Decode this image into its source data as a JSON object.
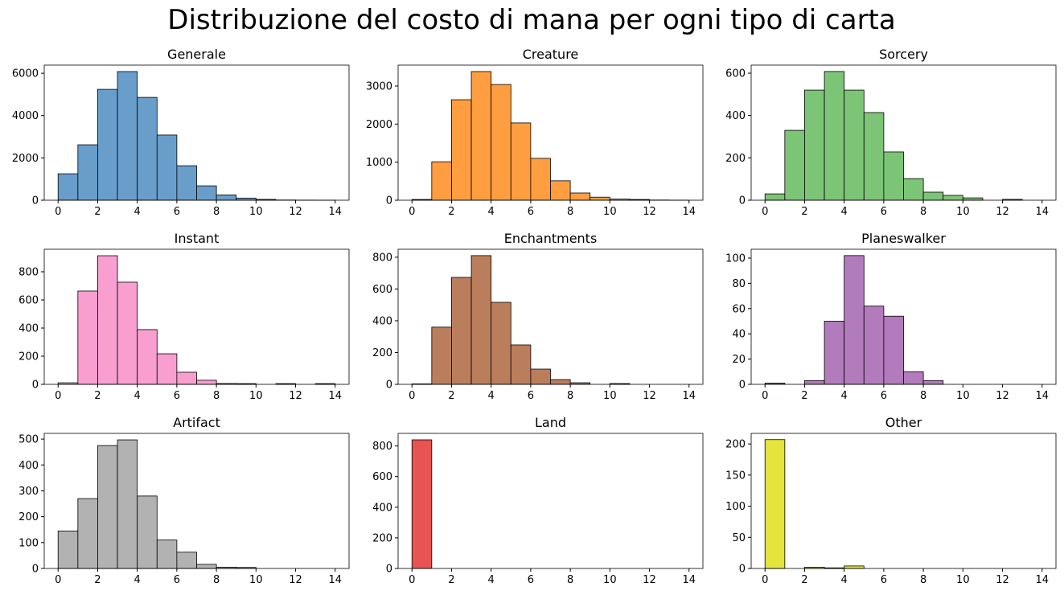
{
  "title": "Distribuzione del costo di mana per ogni tipo di carta",
  "chart_data": [
    {
      "type": "histogram",
      "title": "Generale",
      "color": "#699ecb",
      "bins": [
        0,
        1,
        2,
        3,
        4,
        5,
        6,
        7,
        8,
        9,
        10,
        11,
        12,
        13,
        14
      ],
      "values": [
        1250,
        2620,
        5240,
        6080,
        4860,
        3080,
        1630,
        680,
        250,
        100,
        40,
        10,
        5,
        2
      ],
      "xlim": [
        -0.7,
        14.7
      ],
      "xticks": [
        0,
        2,
        4,
        6,
        8,
        10,
        12,
        14
      ],
      "ylim": [
        0,
        6384
      ],
      "yticks": [
        0,
        2000,
        4000,
        6000
      ]
    },
    {
      "type": "histogram",
      "title": "Creature",
      "color": "#ff9e40",
      "bins": [
        0,
        1,
        2,
        3,
        4,
        5,
        6,
        7,
        8,
        9,
        10,
        11,
        12,
        13,
        14
      ],
      "values": [
        20,
        1010,
        2640,
        3380,
        3040,
        2030,
        1100,
        510,
        190,
        80,
        30,
        20,
        5,
        2
      ],
      "xlim": [
        -0.7,
        14.7
      ],
      "xticks": [
        0,
        2,
        4,
        6,
        8,
        10,
        12,
        14
      ],
      "ylim": [
        0,
        3549
      ],
      "yticks": [
        0,
        1000,
        2000,
        3000
      ]
    },
    {
      "type": "histogram",
      "title": "Sorcery",
      "color": "#7cc576",
      "bins": [
        0,
        1,
        2,
        3,
        4,
        5,
        6,
        7,
        8,
        9,
        10,
        11,
        12,
        13,
        14
      ],
      "values": [
        30,
        330,
        520,
        608,
        520,
        414,
        228,
        102,
        38,
        23,
        11,
        0,
        4,
        0
      ],
      "xlim": [
        -0.7,
        14.7
      ],
      "xticks": [
        0,
        2,
        4,
        6,
        8,
        10,
        12,
        14
      ],
      "ylim": [
        0,
        638
      ],
      "yticks": [
        0,
        200,
        400,
        600
      ]
    },
    {
      "type": "histogram",
      "title": "Instant",
      "color": "#f89fd0",
      "bins": [
        0,
        1,
        2,
        3,
        4,
        5,
        6,
        7,
        8,
        9,
        10,
        11,
        12,
        13,
        14
      ],
      "values": [
        11,
        663,
        914,
        726,
        389,
        217,
        86,
        29,
        6,
        5,
        0,
        5,
        0,
        5
      ],
      "xlim": [
        -0.7,
        14.7
      ],
      "xticks": [
        0,
        2,
        4,
        6,
        8,
        10,
        12,
        14
      ],
      "ylim": [
        0,
        960
      ],
      "yticks": [
        0,
        200,
        400,
        600,
        800
      ]
    },
    {
      "type": "histogram",
      "title": "Enchantments",
      "color": "#bb7e5c",
      "bins": [
        0,
        1,
        2,
        3,
        4,
        5,
        6,
        7,
        8,
        9,
        10,
        11,
        12,
        13,
        14
      ],
      "values": [
        3,
        360,
        673,
        810,
        516,
        248,
        96,
        30,
        10,
        0,
        5,
        0,
        0,
        0
      ],
      "xlim": [
        -0.7,
        14.7
      ],
      "xticks": [
        0,
        2,
        4,
        6,
        8,
        10,
        12,
        14
      ],
      "ylim": [
        0,
        850
      ],
      "yticks": [
        0,
        200,
        400,
        600,
        800
      ]
    },
    {
      "type": "histogram",
      "title": "Planeswalker",
      "color": "#b27bbb",
      "bins": [
        0,
        1,
        2,
        3,
        4,
        5,
        6,
        7,
        8,
        9,
        10,
        11,
        12,
        13,
        14
      ],
      "values": [
        1,
        0,
        3,
        50,
        102,
        62,
        54,
        10,
        3,
        0,
        0,
        0,
        0,
        0
      ],
      "xlim": [
        -0.7,
        14.7
      ],
      "xticks": [
        0,
        2,
        4,
        6,
        8,
        10,
        12,
        14
      ],
      "ylim": [
        0,
        107
      ],
      "yticks": [
        0,
        20,
        40,
        60,
        80,
        100
      ]
    },
    {
      "type": "histogram",
      "title": "Artifact",
      "color": "#b2b2b2",
      "bins": [
        0,
        1,
        2,
        3,
        4,
        5,
        6,
        7,
        8,
        9,
        10,
        11,
        12,
        13,
        14
      ],
      "values": [
        145,
        270,
        475,
        497,
        280,
        110,
        63,
        16,
        5,
        4,
        0,
        0,
        0,
        0
      ],
      "xlim": [
        -0.7,
        14.7
      ],
      "xticks": [
        0,
        2,
        4,
        6,
        8,
        10,
        12,
        14
      ],
      "ylim": [
        0,
        522
      ],
      "yticks": [
        0,
        100,
        200,
        300,
        400,
        500
      ]
    },
    {
      "type": "histogram",
      "title": "Land",
      "color": "#e85353",
      "bins": [
        0,
        1,
        2,
        3,
        4,
        5,
        6,
        7,
        8,
        9,
        10,
        11,
        12,
        13,
        14
      ],
      "values": [
        840,
        0,
        0,
        0,
        0,
        0,
        0,
        0,
        0,
        0,
        0,
        0,
        0,
        0
      ],
      "xlim": [
        -0.7,
        14.7
      ],
      "xticks": [
        0,
        2,
        4,
        6,
        8,
        10,
        12,
        14
      ],
      "ylim": [
        0,
        882
      ],
      "yticks": [
        0,
        200,
        400,
        600,
        800
      ]
    },
    {
      "type": "histogram",
      "title": "Other",
      "color": "#e4e43d",
      "bins": [
        0,
        1,
        2,
        3,
        4,
        5,
        6,
        7,
        8,
        9,
        10,
        11,
        12,
        13,
        14
      ],
      "values": [
        207,
        0,
        2,
        1,
        4,
        0,
        0,
        0,
        0,
        0,
        0,
        0,
        0,
        0
      ],
      "xlim": [
        -0.7,
        14.7
      ],
      "xticks": [
        0,
        2,
        4,
        6,
        8,
        10,
        12,
        14
      ],
      "ylim": [
        0,
        217
      ],
      "yticks": [
        0,
        50,
        100,
        150,
        200
      ]
    }
  ]
}
